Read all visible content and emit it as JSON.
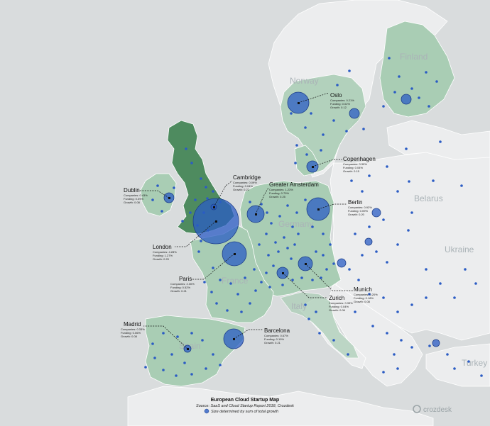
{
  "countries": {
    "finland": "Finland",
    "norway": "Norway",
    "belarus": "Belarus",
    "ukraine": "Ukraine",
    "france": "France",
    "germany": "Germany",
    "turkey": "Turkey",
    "italy": "Italy",
    "spain": "Spain"
  },
  "cities": {
    "oslo": {
      "name": "Oslo",
      "companies": "Companies: 0.21%",
      "funding": "Funding: 0.02%",
      "growth": "Growth: 0.12"
    },
    "copenhagen": {
      "name": "Copenhagen",
      "companies": "Companies: 0.30%",
      "funding": "Funding: 0.04%",
      "growth": "Growth: 0.15"
    },
    "cambridge": {
      "name": "Cambridge",
      "companies": "Companies: 0.09%",
      "funding": "Funding: 0.04%",
      "growth": "Growth: 0.22"
    },
    "greater_amsterdam": {
      "name": "Greater Amsterdam",
      "companies": "Companies: 1.23%",
      "funding": "Funding: 0.79%",
      "growth": "Growth: 0.25"
    },
    "dublin": {
      "name": "Dublin",
      "companies": "Companies: 0.43%",
      "funding": "Funding: 0.09%",
      "growth": "Growth: 0.08"
    },
    "berlin": {
      "name": "Berlin",
      "companies": "Companies: 0.92%",
      "funding": "Funding: 0.09%",
      "growth": "Growth: 0.20"
    },
    "london": {
      "name": "London",
      "companies": "Companies: 4.28%",
      "funding": "Funding: 1.27%",
      "growth": "Growth: 0.29"
    },
    "paris": {
      "name": "Paris",
      "companies": "Companies: 2.30%",
      "funding": "Funding: 0.52%",
      "growth": "Growth: 0.21"
    },
    "munich": {
      "name": "Munich",
      "companies": "Companies: 0.20%",
      "funding": "Funding: 0.18%",
      "growth": "Growth: 0.08"
    },
    "zurich": {
      "name": "Zurich",
      "companies": "Companies: 0.33%",
      "funding": "Funding: 0.04%",
      "growth": "Growth: 0.06"
    },
    "madrid": {
      "name": "Madrid",
      "companies": "Companies: 0.33%",
      "funding": "Funding: 0.06%",
      "growth": "Growth: 0.08"
    },
    "barcelona": {
      "name": "Barcelona",
      "companies": "Companies: 0.67%",
      "funding": "Funding: 0.19%",
      "growth": "Growth: 0.21"
    }
  },
  "caption": {
    "title": "European Cloud Startup Map",
    "source": "Source: SaaS and Cloud Startup Report 2018, Crozdesk",
    "legend": "Size determined by sum of total growth"
  },
  "brand": {
    "name": "crozdesk"
  },
  "colors": {
    "water": "#d9dcdd",
    "land": "#ecedee",
    "shaded_light": "#a9cdb4",
    "shaded_dark": "#4e8b5f",
    "bubble": "#2b5cc4"
  }
}
